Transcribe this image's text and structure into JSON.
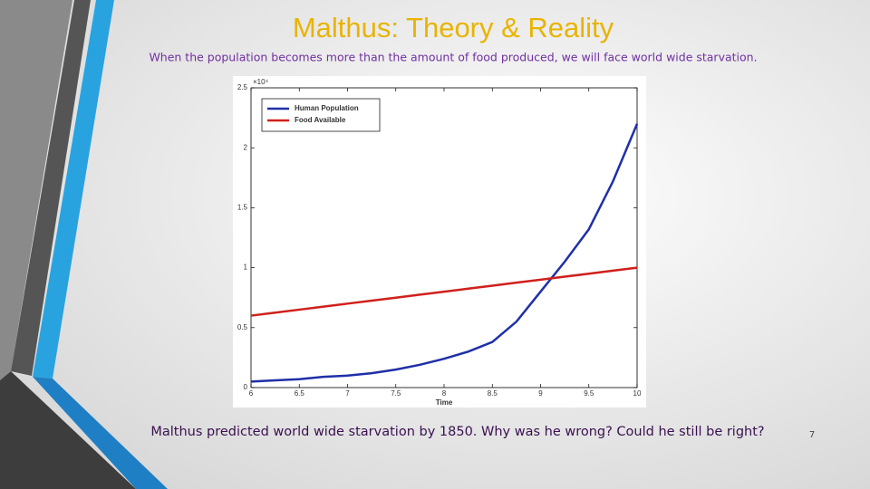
{
  "slide": {
    "title": "Malthus: Theory & Reality",
    "subtitle": "When the population becomes more than the amount of food produced, we will face world wide starvation.",
    "caption": "Malthus predicted world wide starvation by 1850. Why was he wrong? Could he still be right?",
    "page_number": "7"
  },
  "chart_data": {
    "type": "line",
    "xlabel": "Time",
    "y_multiplier": "×10⁴",
    "x": [
      6,
      6.25,
      6.5,
      6.75,
      7,
      7.25,
      7.5,
      7.75,
      8,
      8.25,
      8.5,
      8.75,
      9,
      9.25,
      9.5,
      9.75,
      10
    ],
    "series": [
      {
        "name": "Human Population",
        "color": "#1f2fa8",
        "values": [
          0.05,
          0.06,
          0.07,
          0.09,
          0.1,
          0.12,
          0.15,
          0.19,
          0.24,
          0.3,
          0.38,
          0.55,
          0.8,
          1.05,
          1.32,
          1.72,
          2.2
        ]
      },
      {
        "name": "Food Available",
        "color": "#d0201c",
        "values": [
          0.6,
          0.625,
          0.65,
          0.675,
          0.7,
          0.725,
          0.75,
          0.775,
          0.8,
          0.825,
          0.85,
          0.875,
          0.9,
          0.925,
          0.95,
          0.975,
          1.0
        ]
      }
    ],
    "xlim": [
      6,
      10
    ],
    "xticks": [
      6,
      6.5,
      7,
      7.5,
      8,
      8.5,
      9,
      9.5,
      10
    ],
    "ylim": [
      0,
      2.5
    ],
    "yticks": [
      0,
      0.5,
      1,
      1.5,
      2,
      2.5
    ],
    "legend": "upper-left"
  }
}
